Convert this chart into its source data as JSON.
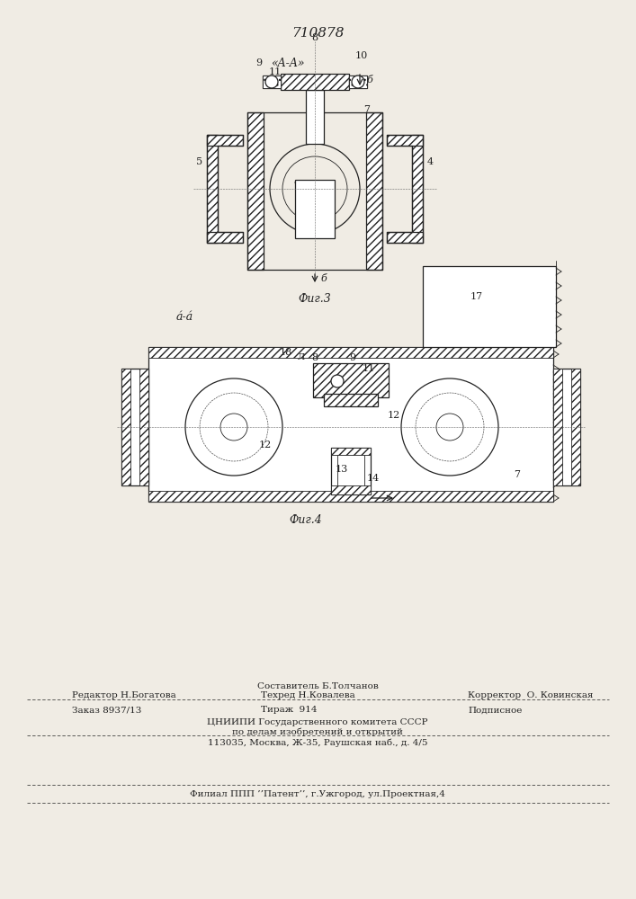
{
  "patent_number": "710878",
  "section_label_top": "«A-A»",
  "section_label_b": "á-á",
  "fig3_label": "Фиг.3",
  "fig4_label": "Фиг.4",
  "arrow_b_label": "á",
  "bg_color": "#f0ece4",
  "line_color": "#2a2a2a",
  "hatch_color": "#2a2a2a",
  "footer": {
    "editor": "Редактор Н.Богатова",
    "composer": "Составитель Б.Толчанов",
    "techred": "Техред Н.Ковалева",
    "corrector": "Корректор  О. Ковинская",
    "order": "Заказ 8937/13",
    "tirazh": "Тираж  914",
    "podpisnoe": "Подписное",
    "cnipi": "ЦНИИПИ Государственного комитета СССР",
    "po_delam": "по делам изобретений и открытий",
    "address": "113035, Москва, Ж-35, Раушская наб., д. 4/5",
    "filial": "Филиал ППП ’’Патент’’, г.Ужгород, ул.Проектная,4"
  }
}
